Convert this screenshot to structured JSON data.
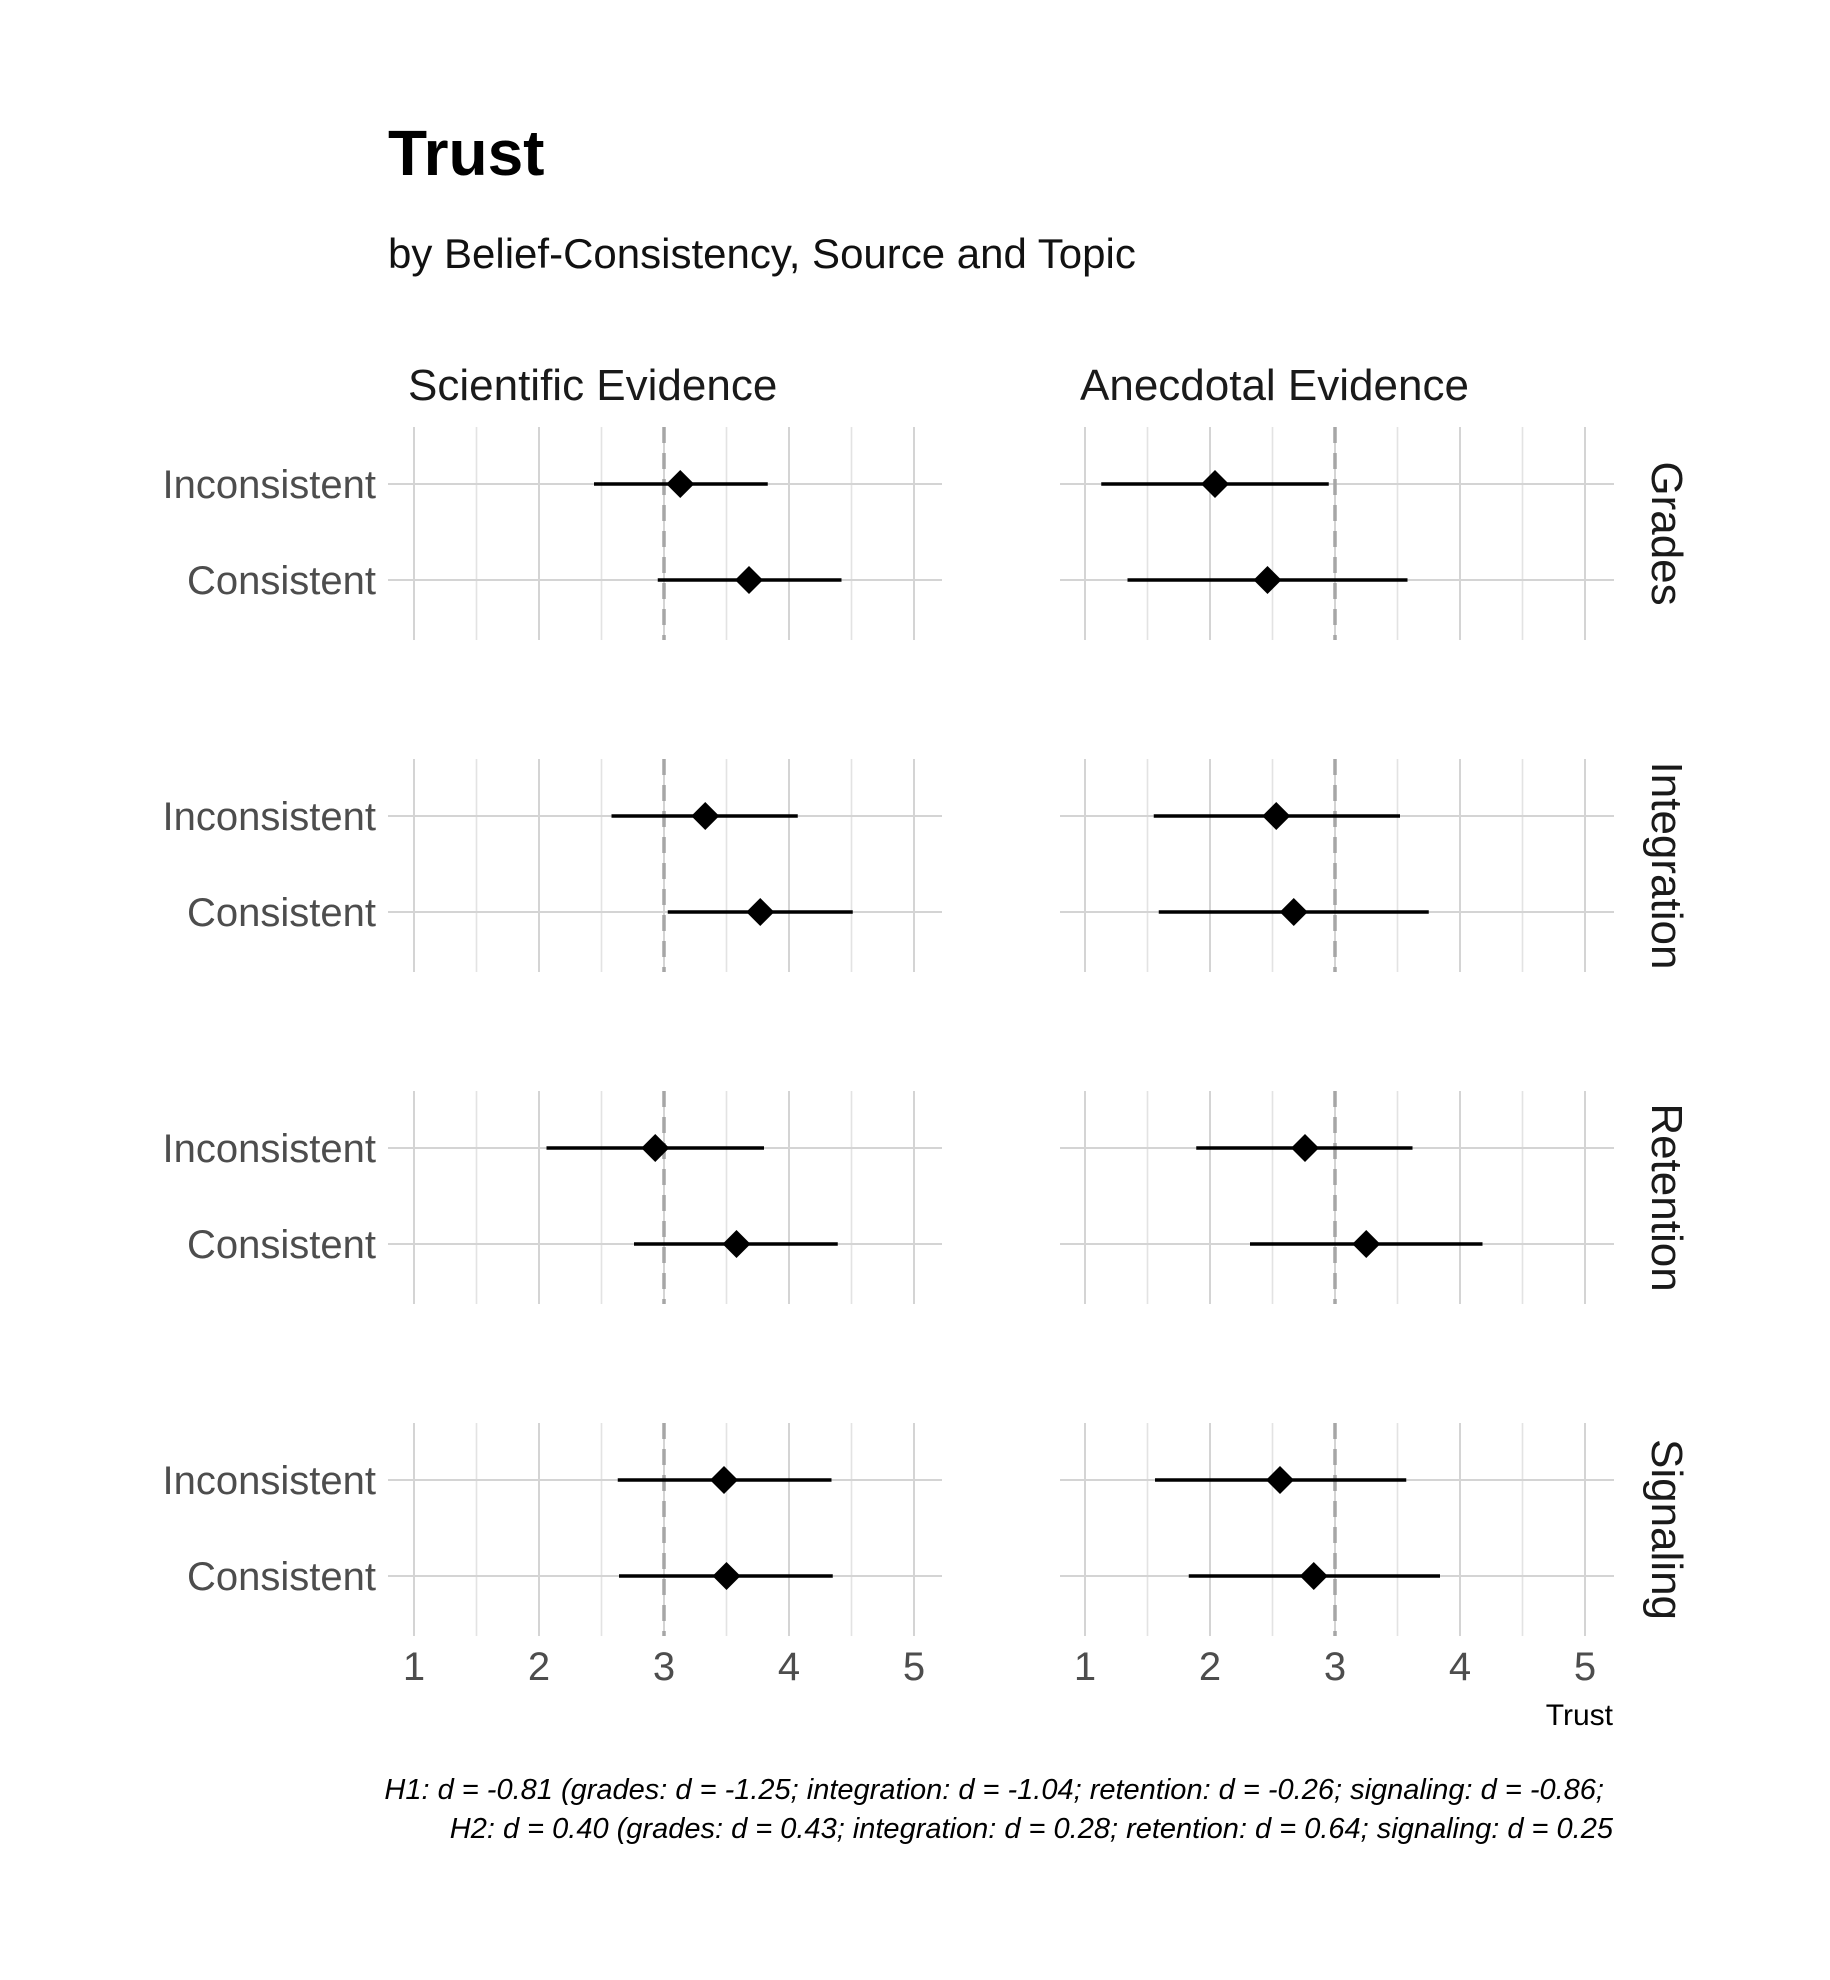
{
  "chart_data": {
    "type": "forest",
    "title": "Trust",
    "subtitle": "by Belief-Consistency, Source and Topic",
    "xlabel": "Trust",
    "xlim": [
      1,
      5
    ],
    "x_ticks": [
      "1",
      "2",
      "3",
      "4",
      "5"
    ],
    "reference_line": 3,
    "grid": true,
    "columns": [
      "Scientific Evidence",
      "Anecdotal Evidence"
    ],
    "rows": [
      "Grades",
      "Integration",
      "Retention",
      "Signaling"
    ],
    "conditions": [
      "Inconsistent",
      "Consistent"
    ],
    "panels": [
      {
        "column": "Scientific Evidence",
        "row": "Grades",
        "points": [
          {
            "label": "Inconsistent",
            "mean": 3.13,
            "low": 2.44,
            "high": 3.83
          },
          {
            "label": "Consistent",
            "mean": 3.68,
            "low": 2.95,
            "high": 4.42
          }
        ]
      },
      {
        "column": "Anecdotal Evidence",
        "row": "Grades",
        "points": [
          {
            "label": "Inconsistent",
            "mean": 2.04,
            "low": 1.13,
            "high": 2.95
          },
          {
            "label": "Consistent",
            "mean": 2.46,
            "low": 1.34,
            "high": 3.58
          }
        ]
      },
      {
        "column": "Scientific Evidence",
        "row": "Integration",
        "points": [
          {
            "label": "Inconsistent",
            "mean": 3.33,
            "low": 2.58,
            "high": 4.07
          },
          {
            "label": "Consistent",
            "mean": 3.77,
            "low": 3.03,
            "high": 4.51
          }
        ]
      },
      {
        "column": "Anecdotal Evidence",
        "row": "Integration",
        "points": [
          {
            "label": "Inconsistent",
            "mean": 2.53,
            "low": 1.55,
            "high": 3.52
          },
          {
            "label": "Consistent",
            "mean": 2.67,
            "low": 1.59,
            "high": 3.75
          }
        ]
      },
      {
        "column": "Scientific Evidence",
        "row": "Retention",
        "points": [
          {
            "label": "Inconsistent",
            "mean": 2.93,
            "low": 2.06,
            "high": 3.8
          },
          {
            "label": "Consistent",
            "mean": 3.58,
            "low": 2.76,
            "high": 4.39
          }
        ]
      },
      {
        "column": "Anecdotal Evidence",
        "row": "Retention",
        "points": [
          {
            "label": "Inconsistent",
            "mean": 2.76,
            "low": 1.89,
            "high": 3.62
          },
          {
            "label": "Consistent",
            "mean": 3.25,
            "low": 2.32,
            "high": 4.18
          }
        ]
      },
      {
        "column": "Scientific Evidence",
        "row": "Signaling",
        "points": [
          {
            "label": "Inconsistent",
            "mean": 3.48,
            "low": 2.63,
            "high": 4.34
          },
          {
            "label": "Consistent",
            "mean": 3.5,
            "low": 2.64,
            "high": 4.35
          }
        ]
      },
      {
        "column": "Anecdotal Evidence",
        "row": "Signaling",
        "points": [
          {
            "label": "Inconsistent",
            "mean": 2.56,
            "low": 1.56,
            "high": 3.57
          },
          {
            "label": "Consistent",
            "mean": 2.83,
            "low": 1.83,
            "high": 3.84
          }
        ]
      }
    ],
    "caption": [
      "H1: d = -0.81 (grades: d = -1.25; integration: d = -1.04; retention: d = -0.26; signaling: d = -0.86;",
      "H2: d = 0.40 (grades: d = 0.43; integration: d = 0.28; retention: d = 0.64; signaling: d = 0.25"
    ]
  }
}
